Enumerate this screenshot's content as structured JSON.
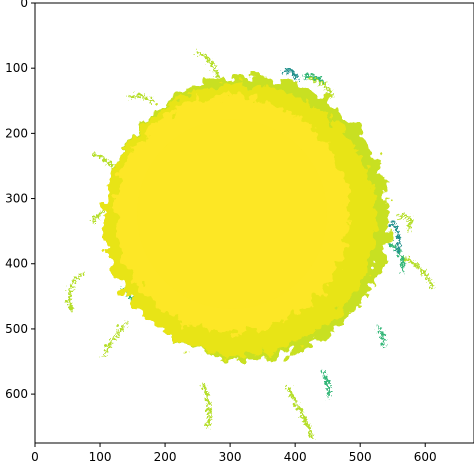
{
  "chart_data": {
    "type": "image",
    "xlim": [
      0,
      675
    ],
    "ylim": [
      675,
      0
    ],
    "xticks": [
      0,
      100,
      200,
      300,
      400,
      500,
      600
    ],
    "yticks": [
      0,
      100,
      200,
      300,
      400,
      500,
      600
    ]
  }
}
